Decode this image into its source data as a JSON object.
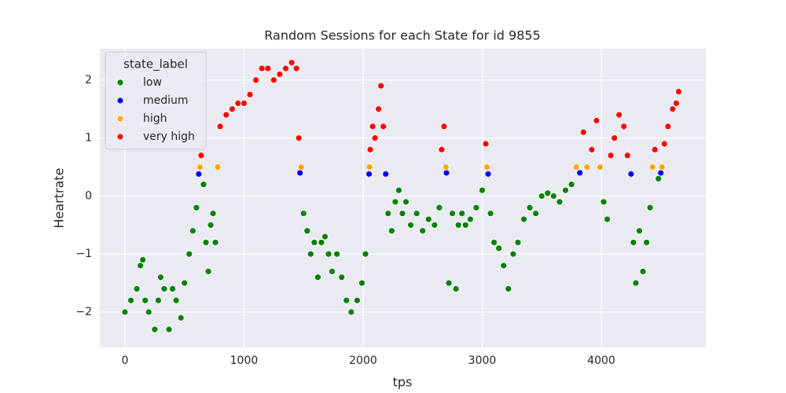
{
  "chart_data": {
    "type": "scatter",
    "title": "Random Sessions for each State for id 9855",
    "x_label": "tps",
    "y_label": "Heartrate",
    "legend_title": "state_label",
    "legend_position": "upper left",
    "grid": true,
    "xlim": [
      -211,
      4878
    ],
    "ylim": [
      -2.61,
      2.54
    ],
    "xticks": [
      0,
      1000,
      2000,
      3000,
      4000
    ],
    "yticks": [
      {
        "value": -2,
        "label": "−2"
      },
      {
        "value": -1,
        "label": "−1"
      },
      0,
      1,
      2
    ],
    "series": [
      {
        "name": "low",
        "color": "#008000",
        "x": [
          0,
          50,
          100,
          130,
          150,
          170,
          200,
          250,
          280,
          300,
          330,
          370,
          400,
          430,
          470,
          500,
          540,
          570,
          600,
          660,
          680,
          700,
          720,
          740,
          760,
          1500,
          1530,
          1560,
          1590,
          1620,
          1650,
          1680,
          1710,
          1740,
          1780,
          1820,
          1860,
          1900,
          1950,
          1990,
          2020,
          2210,
          2240,
          2270,
          2300,
          2330,
          2360,
          2400,
          2450,
          2500,
          2550,
          2600,
          2640,
          2720,
          2750,
          2780,
          2800,
          2830,
          2860,
          2900,
          2950,
          3000,
          3070,
          3100,
          3140,
          3180,
          3220,
          3260,
          3300,
          3350,
          3400,
          3450,
          3500,
          3550,
          3600,
          3650,
          3700,
          3750,
          4020,
          4050,
          4270,
          4290,
          4320,
          4350,
          4380,
          4410,
          4480
        ],
        "y": [
          -2.0,
          -1.8,
          -1.6,
          -1.2,
          -1.1,
          -1.8,
          -2.0,
          -2.3,
          -1.8,
          -1.4,
          -1.6,
          -2.3,
          -1.6,
          -1.8,
          -2.1,
          -1.5,
          -1.0,
          -0.6,
          -0.2,
          0.2,
          -0.8,
          -1.3,
          -0.5,
          -0.3,
          -0.8,
          -0.3,
          -0.6,
          -1.0,
          -0.8,
          -1.4,
          -0.8,
          -0.7,
          -1.0,
          -1.3,
          -1.0,
          -1.4,
          -1.8,
          -2.0,
          -1.8,
          -1.5,
          -1.0,
          -0.3,
          -0.6,
          -0.1,
          0.1,
          -0.3,
          -0.1,
          -0.5,
          -0.3,
          -0.6,
          -0.4,
          -0.5,
          -0.2,
          -1.5,
          -0.3,
          -1.6,
          -0.5,
          -0.3,
          -0.5,
          -0.4,
          -0.2,
          0.1,
          -0.3,
          -0.8,
          -0.9,
          -1.2,
          -1.6,
          -1.0,
          -0.8,
          -0.4,
          -0.2,
          -0.3,
          0.0,
          0.05,
          0.0,
          -0.1,
          0.1,
          0.2,
          -0.1,
          -0.4,
          -0.8,
          -1.5,
          -0.6,
          -1.3,
          -0.8,
          -0.2,
          0.3
        ]
      },
      {
        "name": "medium",
        "color": "#0000ff",
        "x": [
          620,
          1470,
          2050,
          2190,
          2700,
          3050,
          3820,
          4250,
          4500
        ],
        "y": [
          0.38,
          0.4,
          0.38,
          0.38,
          0.4,
          0.38,
          0.4,
          0.38,
          0.4
        ]
      },
      {
        "name": "high",
        "color": "#ffa500",
        "x": [
          630,
          780,
          1480,
          2055,
          2695,
          3040,
          3790,
          3880,
          3990,
          4430,
          4510
        ],
        "y": [
          0.5,
          0.5,
          0.5,
          0.5,
          0.5,
          0.5,
          0.5,
          0.5,
          0.5,
          0.5,
          0.5
        ]
      },
      {
        "name": "very high",
        "color": "#ff0000",
        "x": [
          640,
          800,
          850,
          900,
          950,
          1000,
          1050,
          1100,
          1150,
          1200,
          1250,
          1300,
          1350,
          1400,
          1440,
          1460,
          2060,
          2080,
          2100,
          2130,
          2150,
          2170,
          2660,
          2680,
          3030,
          3850,
          3920,
          3960,
          4080,
          4110,
          4150,
          4190,
          4220,
          4450,
          4530,
          4560,
          4600,
          4630,
          4650
        ],
        "y": [
          0.7,
          1.2,
          1.4,
          1.5,
          1.6,
          1.6,
          1.75,
          2.0,
          2.2,
          2.2,
          2.0,
          2.1,
          2.2,
          2.3,
          2.2,
          1.0,
          0.8,
          1.2,
          1.0,
          1.5,
          1.9,
          1.2,
          0.8,
          1.2,
          0.9,
          1.1,
          0.8,
          1.3,
          0.7,
          1.0,
          1.4,
          1.2,
          0.7,
          0.8,
          0.9,
          1.2,
          1.5,
          1.6,
          1.8
        ]
      }
    ]
  }
}
